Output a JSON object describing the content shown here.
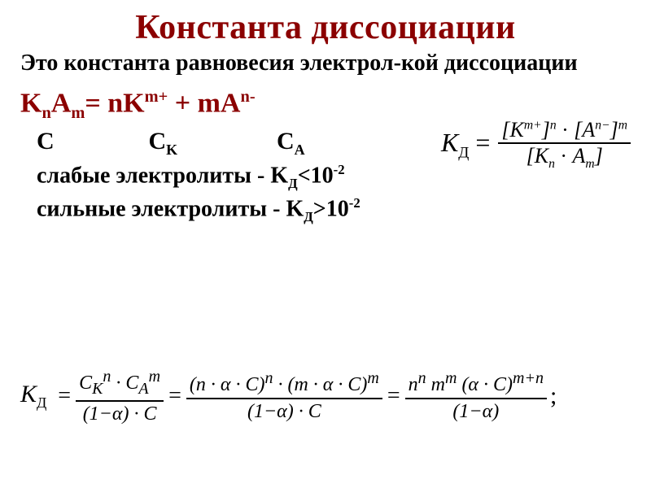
{
  "title": "Константа диссоциации",
  "definition": "Это константа равновесия электрол-кой диссоциации",
  "dissociation_eq": {
    "left": "K",
    "left_sub": "n",
    "left2": "A",
    "left2_sub": "m",
    "eq": "=",
    "r1_coef": "n",
    "r1_base": "K",
    "r1_sup": "m+",
    "plus": " + ",
    "r2_coef": "m",
    "r2_base": "A",
    "r2_sup": "n-"
  },
  "kd_fraction": {
    "lhs_base": "K",
    "lhs_sub": "Д",
    "eq": " = ",
    "num_l": "[K",
    "num_sup1": "m+",
    "num_mid": "]",
    "num_sup2": "n",
    "num_dot": " · ",
    "num_r": "[A",
    "num_sup3": "n−",
    "num_rb": "]",
    "num_sup4": "m",
    "den_l": "[K",
    "den_sub1": "n",
    "den_dot": " · ",
    "den_r": "A",
    "den_sub2": "m",
    "den_rb": "]"
  },
  "c_row": {
    "c1": "С",
    "c2_base": "С",
    "c2_sub": "K",
    "c3_base": "С",
    "c3_sub": "A"
  },
  "weak": {
    "label": "слабые электролиты - K",
    "sub": "Д",
    "op": "<10",
    "exp": "-2"
  },
  "strong": {
    "label": "сильные электролиты - K",
    "sub": "Д",
    "op": ">10",
    "exp": "-2"
  },
  "kd_chain": {
    "lhs_base": "K",
    "lhs_sub": "Д",
    "eq": "=",
    "f1_num": "C<sub>К</sub><sup>n</sup> · C<sub>A</sub><sup>m</sup>",
    "f1_den": "(1−α) · C",
    "f2_num": "(n · α · C)<sup>n</sup> · (m · α · C)<sup>m</sup>",
    "f2_den": "(1−α) · C",
    "f3_num": "n<sup>n</sup> m<sup>m</sup> (α · C)<sup>m+n</sup>",
    "f3_den": "(1−α)",
    "semicolon": ";"
  },
  "colors": {
    "title": "#8b0000",
    "text": "#000000",
    "bg": "#ffffff"
  }
}
